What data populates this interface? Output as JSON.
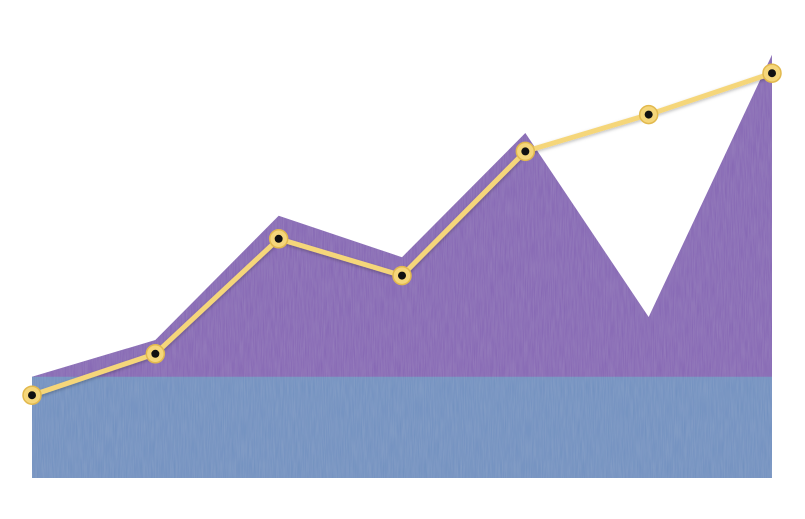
{
  "chart_data": {
    "type": "area",
    "title": "",
    "xlabel": "",
    "ylabel": "",
    "x": [
      1,
      2,
      3,
      4,
      5,
      6,
      7
    ],
    "ylim": [
      0,
      100
    ],
    "grid": false,
    "legend": "none",
    "series": [
      {
        "kind": "area",
        "color": "#6e8fbf",
        "values": [
          22,
          22,
          22,
          22,
          22,
          22,
          22
        ]
      },
      {
        "kind": "area",
        "color": "#8463b3",
        "values": [
          22,
          30,
          57,
          48,
          75,
          35,
          92
        ]
      },
      {
        "kind": "line",
        "color": "#f5d67a",
        "marker_fill": "#111111",
        "values": [
          18,
          27,
          52,
          44,
          71,
          79,
          88
        ]
      }
    ]
  }
}
